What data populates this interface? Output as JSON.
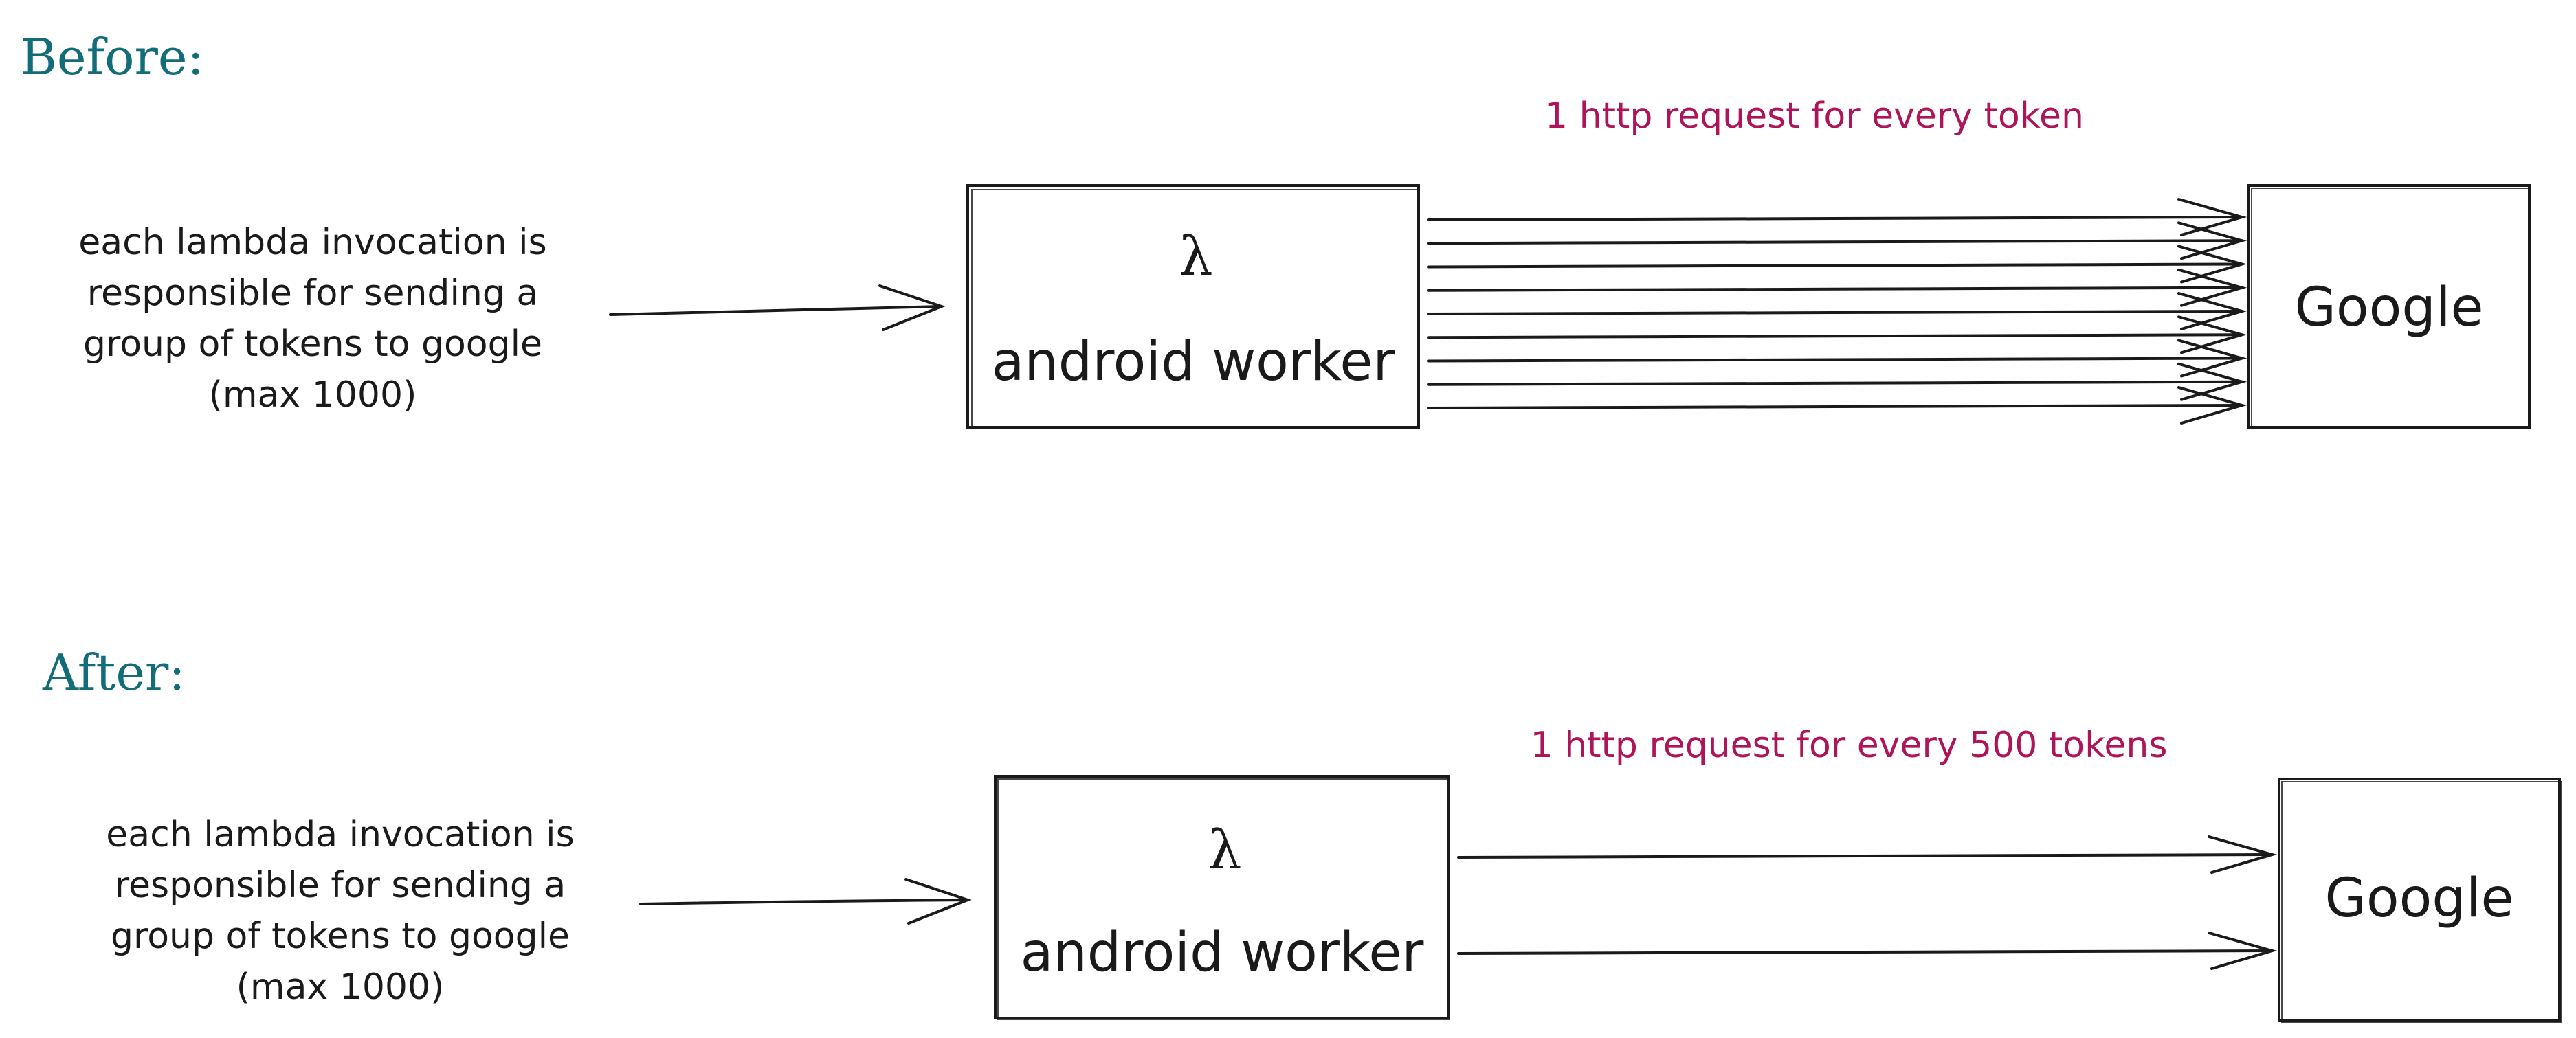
{
  "before": {
    "title": "Before:",
    "description": [
      "each lambda invocation is",
      "responsible for sending a",
      "group of tokens to google",
      "(max 1000)"
    ],
    "worker_symbol": "λ",
    "worker_label": "android worker",
    "annotation": "1 http request for every token",
    "target_label": "Google",
    "request_arrow_count": 9
  },
  "after": {
    "title": "After:",
    "description": [
      "each lambda invocation is",
      "responsible for sending a",
      "group of tokens to google",
      "(max 1000)"
    ],
    "worker_symbol": "λ",
    "worker_label": "android worker",
    "annotation": "1 http request for every 500 tokens",
    "target_label": "Google",
    "request_arrow_count": 2
  },
  "colors": {
    "title": "#136d79",
    "annotation": "#ae1458",
    "ink": "#1a1a1a"
  }
}
